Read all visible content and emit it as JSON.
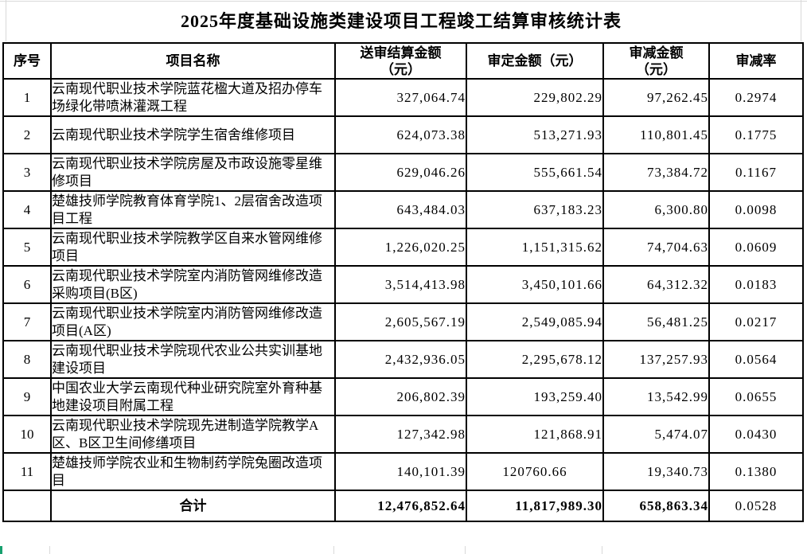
{
  "title": "2025年度基础设施类建设项目工程竣工结算审核统计表",
  "table": {
    "headers": [
      {
        "key": "seq",
        "label": "序号"
      },
      {
        "key": "name",
        "label": "项目名称"
      },
      {
        "key": "submitted",
        "label": "送审结算金额\n（元）"
      },
      {
        "key": "approved",
        "label": "审定金额（元）"
      },
      {
        "key": "reduced",
        "label": "审减金额\n（元）"
      },
      {
        "key": "rate",
        "label": "审减率"
      }
    ],
    "rows": [
      {
        "seq": "1",
        "name": "云南现代职业技术学院蓝花楹大道及招办停车场绿化带喷淋灌溉工程",
        "submitted": "327,064.74",
        "approved": "229,802.29",
        "reduced": "97,262.45",
        "rate": "0.2974"
      },
      {
        "seq": "2",
        "name": "云南现代职业技术学院学生宿舍维修项目",
        "submitted": "624,073.38",
        "approved": "513,271.93",
        "reduced": "110,801.45",
        "rate": "0.1775"
      },
      {
        "seq": "3",
        "name": "云南现代职业技术学院房屋及市政设施零星维修项目",
        "submitted": "629,046.26",
        "approved": "555,661.54",
        "reduced": "73,384.72",
        "rate": "0.1167"
      },
      {
        "seq": "4",
        "name": "楚雄技师学院教育体育学院1、2层宿舍改造项目工程",
        "submitted": "643,484.03",
        "approved": "637,183.23",
        "reduced": "6,300.80",
        "rate": "0.0098"
      },
      {
        "seq": "5",
        "name": "云南现代职业技术学院教学区自来水管网维修项目",
        "submitted": "1,226,020.25",
        "approved": "1,151,315.62",
        "reduced": "74,704.63",
        "rate": "0.0609"
      },
      {
        "seq": "6",
        "name": "云南现代职业技术学院室内消防管网维修改造采购项目(B区)",
        "submitted": "3,514,413.98",
        "approved": "3,450,101.66",
        "reduced": "64,312.32",
        "rate": "0.0183"
      },
      {
        "seq": "7",
        "name": "云南现代职业技术学院室内消防管网维修改造项目(A区)",
        "submitted": "2,605,567.19",
        "approved": "2,549,085.94",
        "reduced": "56,481.25",
        "rate": "0.0217"
      },
      {
        "seq": "8",
        "name": "云南现代职业技术学院现代农业公共实训基地建设项目",
        "submitted": "2,432,936.05",
        "approved": "2,295,678.12",
        "reduced": "137,257.93",
        "rate": "0.0564"
      },
      {
        "seq": "9",
        "name": "中国农业大学云南现代种业研究院室外育种基地建设项目附属工程",
        "submitted": "206,802.39",
        "approved": "193,259.40",
        "reduced": "13,542.99",
        "rate": "0.0655"
      },
      {
        "seq": "10",
        "name": "云南现代职业技术学院现先进制造学院教学A区、B区卫生间修缮项目",
        "submitted": "127,342.98",
        "approved": "121,868.91",
        "reduced": "5,474.07",
        "rate": "0.0430"
      },
      {
        "seq": "11",
        "name": "楚雄技师学院农业和生物制药学院兔圈改造项目",
        "submitted": "140,101.39",
        "approved": "120760.66",
        "approved_centered": true,
        "reduced": "19,340.73",
        "rate": "0.1380"
      }
    ],
    "total_row": {
      "seq": "",
      "label": "合计",
      "submitted": "12,476,852.64",
      "approved": "11,817,989.30",
      "reduced": "658,863.34",
      "rate": "0.0528"
    }
  },
  "colors": {
    "border": "#000000",
    "gridline": "#d9d9d9",
    "selection_green": "#17a06e",
    "background": "#ffffff"
  }
}
